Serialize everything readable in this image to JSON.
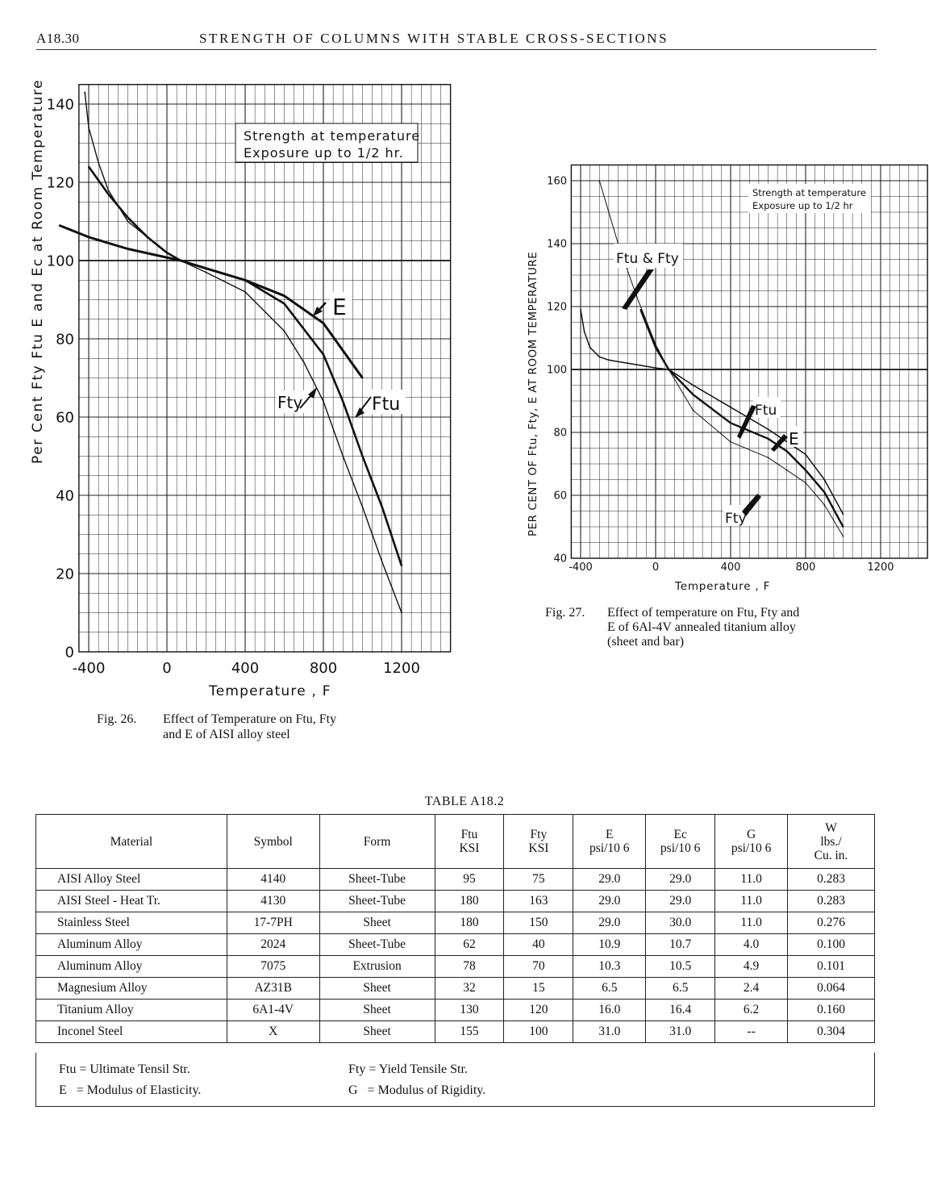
{
  "header": {
    "page_number": "A18.30",
    "running_title": "STRENGTH OF COLUMNS WITH STABLE CROSS-SECTIONS"
  },
  "fig26": {
    "ylabel": "Per Cent Fty Ftu E and Ec at Room Temperature",
    "xlabel": "Temperature , F",
    "note_line1": "Strength at temperature",
    "note_line2": "Exposure up to 1/2 hr.",
    "xticks": [
      "-400",
      "0",
      "400",
      "800",
      "1200"
    ],
    "yticks": [
      "0",
      "20",
      "40",
      "60",
      "80",
      "100",
      "120",
      "140"
    ],
    "curve_labels": {
      "E": "E",
      "Ftu": "Ftu",
      "Fty": "Fty"
    },
    "caption_num": "Fig. 26.",
    "caption_line1": "Effect of Temperature on Ftu, Fty",
    "caption_line2": "and E of AISI alloy steel"
  },
  "fig27": {
    "ylabel": "PER CENT OF Ftu, Fty, E AT ROOM TEMPERATURE",
    "xlabel": "Temperature , F",
    "note_line1": "Strength at temperature",
    "note_line2": "Exposure up to 1/2 hr",
    "xticks": [
      "-400",
      "0",
      "400",
      "800",
      "1200"
    ],
    "yticks": [
      "40",
      "60",
      "80",
      "100",
      "120",
      "140",
      "160"
    ],
    "curve_labels": {
      "FtuFty": "Ftu & Fty",
      "Ftu": "Ftu",
      "E": "E",
      "Fty": "Fty"
    },
    "caption_num": "Fig. 27.",
    "caption_line1": "Effect of temperature on Ftu, Fty and",
    "caption_line2": "E of 6Al-4V annealed titanium alloy",
    "caption_line3": "(sheet and bar)"
  },
  "chart_data": [
    {
      "type": "line",
      "xlabel": "Temperature , F",
      "ylabel": "Per Cent Fty Ftu E and Ec at Room Temperature",
      "xlim": [
        -450,
        1450
      ],
      "ylim": [
        0,
        145
      ],
      "grid": true,
      "series": [
        {
          "name": "E",
          "x": [
            -550,
            -400,
            -200,
            70,
            200,
            400,
            600,
            800,
            900,
            1000
          ],
          "y": [
            109,
            106,
            103,
            100,
            98,
            95,
            91,
            84,
            77,
            70
          ]
        },
        {
          "name": "Ftu",
          "x": [
            -400,
            -300,
            -200,
            -100,
            0,
            70,
            200,
            400,
            600,
            800,
            900,
            1000,
            1100,
            1200
          ],
          "y": [
            124,
            117,
            111,
            106,
            102,
            100,
            98,
            95,
            89,
            76,
            64,
            50,
            37,
            22
          ]
        },
        {
          "name": "Fty",
          "x": [
            -420,
            -400,
            -350,
            -300,
            -200,
            -100,
            0,
            70,
            200,
            400,
            600,
            700,
            800,
            900,
            1000,
            1100,
            1200
          ],
          "y": [
            143,
            134,
            125,
            118,
            110,
            106,
            102,
            100,
            97,
            92,
            82,
            74,
            64,
            50,
            37,
            23,
            10
          ]
        }
      ]
    },
    {
      "type": "line",
      "xlabel": "Temperature , F",
      "ylabel": "PER CENT OF Ftu, Fty, E AT ROOM TEMPERATURE",
      "xlim": [
        -450,
        1450
      ],
      "ylim": [
        40,
        165
      ],
      "grid": true,
      "series": [
        {
          "name": "E",
          "x": [
            -400,
            -380,
            -350,
            -300,
            -250,
            -200,
            -100,
            0,
            70,
            200,
            400,
            600,
            800,
            900,
            1000
          ],
          "y": [
            119,
            112,
            107,
            104,
            103,
            102.5,
            101.5,
            100.5,
            100,
            95,
            88,
            81,
            73,
            65,
            54
          ]
        },
        {
          "name": "Ftu",
          "x": [
            -80,
            0,
            70,
            200,
            400,
            600,
            700,
            800,
            900,
            1000
          ],
          "y": [
            119,
            107,
            100,
            92,
            83,
            78,
            74,
            68,
            61,
            50
          ]
        },
        {
          "name": "Fty",
          "x": [
            -300,
            -200,
            -100,
            0,
            70,
            200,
            400,
            600,
            700,
            800,
            900,
            1000
          ],
          "y": [
            160,
            140,
            123,
            108,
            100,
            87,
            77,
            72,
            68,
            64,
            57,
            47
          ]
        }
      ]
    }
  ],
  "table": {
    "title": "TABLE A18.2",
    "headers": [
      {
        "l1": "Material",
        "l2": "",
        "l3": ""
      },
      {
        "l1": "Symbol",
        "l2": "",
        "l3": ""
      },
      {
        "l1": "Form",
        "l2": "",
        "l3": ""
      },
      {
        "l1": "Ftu",
        "l2": "KSI",
        "l3": ""
      },
      {
        "l1": "Fty",
        "l2": "KSI",
        "l3": ""
      },
      {
        "l1": "E",
        "l2": "psi/10 6",
        "l3": ""
      },
      {
        "l1": "Ec",
        "l2": "psi/10 6",
        "l3": ""
      },
      {
        "l1": "G",
        "l2": "psi/10 6",
        "l3": ""
      },
      {
        "l1": "W",
        "l2": "lbs./",
        "l3": "Cu. in."
      }
    ],
    "rows": [
      [
        "AISI Alloy Steel",
        "4140",
        "Sheet-Tube",
        "95",
        "75",
        "29.0",
        "29.0",
        "11.0",
        "0.283"
      ],
      [
        "AISI Steel - Heat Tr.",
        "4130",
        "Sheet-Tube",
        "180",
        "163",
        "29.0",
        "29.0",
        "11.0",
        "0.283"
      ],
      [
        "Stainless Steel",
        "17-7PH",
        "Sheet",
        "180",
        "150",
        "29.0",
        "30.0",
        "11.0",
        "0.276"
      ],
      [
        "Aluminum Alloy",
        "2024",
        "Sheet-Tube",
        "62",
        "40",
        "10.9",
        "10.7",
        "4.0",
        "0.100"
      ],
      [
        "Aluminum Alloy",
        "7075",
        "Extrusion",
        "78",
        "70",
        "10.3",
        "10.5",
        "4.9",
        "0.101"
      ],
      [
        "Magnesium Alloy",
        "AZ31B",
        "Sheet",
        "32",
        "15",
        "6.5",
        "6.5",
        "2.4",
        "0.064"
      ],
      [
        "Titanium Alloy",
        "6A1-4V",
        "Sheet",
        "130",
        "120",
        "16.0",
        "16.4",
        "6.2",
        "0.160"
      ],
      [
        "Inconel Steel",
        "X",
        "Sheet",
        "155",
        "100",
        "31.0",
        "31.0",
        "--",
        "0.304"
      ]
    ],
    "legend": {
      "ftu": "Ftu = Ultimate Tensil Str.",
      "fty": "Fty = Yield Tensile Str.",
      "e": "E   = Modulus of Elasticity.",
      "g": "G   = Modulus of Rigidity."
    }
  }
}
